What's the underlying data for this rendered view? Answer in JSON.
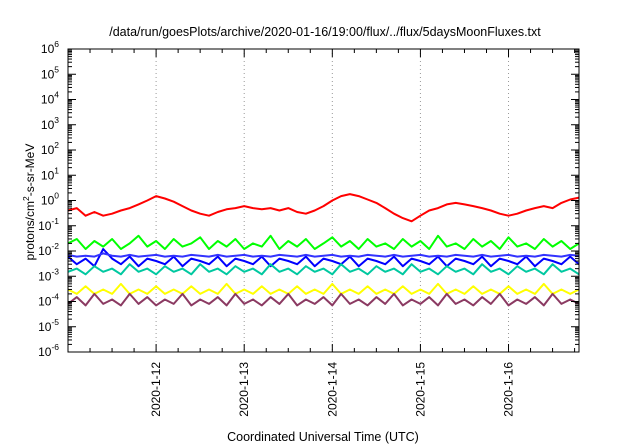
{
  "chart_data": {
    "type": "line",
    "title": "/data/run/goesPlots/archive/2020-01-16/19:00/flux/../flux/5daysMoonFluxes.txt",
    "xlabel": "Coordinated Universal Time (UTC)",
    "ylabel": {
      "base": "protons/cm",
      "sup": "2",
      "rest": "-s-sr-MeV"
    },
    "x_ticks": [
      "2020-1-12",
      "2020-1-13",
      "2020-1-14",
      "2020-1-15",
      "2020-1-16"
    ],
    "xlim_days": [
      0.0,
      5.8
    ],
    "ylim": [
      1e-06,
      1000000.0
    ],
    "y_scale": "log",
    "y_ticks": [
      {
        "base": "10",
        "exp": "-6"
      },
      {
        "base": "10",
        "exp": "-5"
      },
      {
        "base": "10",
        "exp": "-4"
      },
      {
        "base": "10",
        "exp": "-3"
      },
      {
        "base": "10",
        "exp": "-2"
      },
      {
        "base": "10",
        "exp": "-1"
      },
      {
        "base": "10",
        "exp": "0"
      },
      {
        "base": "10",
        "exp": "1"
      },
      {
        "base": "10",
        "exp": "2"
      },
      {
        "base": "10",
        "exp": "3"
      },
      {
        "base": "10",
        "exp": "4"
      },
      {
        "base": "10",
        "exp": "5"
      },
      {
        "base": "10",
        "exp": "6"
      }
    ],
    "grid": "dotted",
    "legend": "none",
    "series": [
      {
        "color": "#ff0000",
        "x": [
          0.0,
          0.1,
          0.2,
          0.3,
          0.4,
          0.5,
          0.6,
          0.7,
          0.8,
          0.9,
          1.0,
          1.1,
          1.2,
          1.3,
          1.4,
          1.5,
          1.6,
          1.7,
          1.8,
          1.9,
          2.0,
          2.1,
          2.2,
          2.3,
          2.4,
          2.5,
          2.6,
          2.7,
          2.8,
          2.9,
          3.0,
          3.1,
          3.2,
          3.3,
          3.4,
          3.5,
          3.6,
          3.7,
          3.8,
          3.9,
          4.0,
          4.1,
          4.2,
          4.3,
          4.4,
          4.5,
          4.6,
          4.7,
          4.8,
          4.9,
          5.0,
          5.1,
          5.2,
          5.3,
          5.4,
          5.5,
          5.6,
          5.7,
          5.8
        ],
        "values": [
          0.4,
          0.5,
          0.25,
          0.35,
          0.25,
          0.3,
          0.4,
          0.5,
          0.7,
          1.0,
          1.5,
          1.2,
          0.9,
          0.6,
          0.4,
          0.3,
          0.25,
          0.35,
          0.45,
          0.5,
          0.6,
          0.5,
          0.45,
          0.5,
          0.4,
          0.5,
          0.35,
          0.3,
          0.4,
          0.6,
          1.0,
          1.5,
          1.8,
          1.5,
          1.1,
          0.8,
          0.5,
          0.3,
          0.2,
          0.15,
          0.25,
          0.4,
          0.5,
          0.7,
          0.8,
          0.7,
          0.6,
          0.5,
          0.4,
          0.3,
          0.25,
          0.3,
          0.4,
          0.5,
          0.6,
          0.5,
          0.8,
          1.1,
          1.3
        ]
      },
      {
        "color": "#00ff00",
        "x": [
          0.0,
          0.1,
          0.2,
          0.3,
          0.4,
          0.5,
          0.6,
          0.7,
          0.8,
          0.9,
          1.0,
          1.1,
          1.2,
          1.3,
          1.4,
          1.5,
          1.6,
          1.7,
          1.8,
          1.9,
          2.0,
          2.1,
          2.2,
          2.3,
          2.4,
          2.5,
          2.6,
          2.7,
          2.8,
          2.9,
          3.0,
          3.1,
          3.2,
          3.3,
          3.4,
          3.5,
          3.6,
          3.7,
          3.8,
          3.9,
          4.0,
          4.1,
          4.2,
          4.3,
          4.4,
          4.5,
          4.6,
          4.7,
          4.8,
          4.9,
          5.0,
          5.1,
          5.2,
          5.3,
          5.4,
          5.5,
          5.6,
          5.7,
          5.8
        ],
        "values": [
          0.02,
          0.03,
          0.012,
          0.025,
          0.015,
          0.03,
          0.012,
          0.02,
          0.04,
          0.015,
          0.025,
          0.012,
          0.03,
          0.015,
          0.02,
          0.035,
          0.012,
          0.025,
          0.015,
          0.03,
          0.012,
          0.02,
          0.015,
          0.04,
          0.012,
          0.025,
          0.015,
          0.03,
          0.012,
          0.02,
          0.035,
          0.015,
          0.025,
          0.012,
          0.03,
          0.015,
          0.02,
          0.012,
          0.03,
          0.015,
          0.025,
          0.012,
          0.04,
          0.015,
          0.02,
          0.012,
          0.03,
          0.015,
          0.025,
          0.012,
          0.035,
          0.015,
          0.02,
          0.012,
          0.03,
          0.015,
          0.025,
          0.012,
          0.02
        ]
      },
      {
        "color": "#0000ff",
        "x": [
          0.0,
          0.1,
          0.2,
          0.3,
          0.4,
          0.5,
          0.6,
          0.7,
          0.8,
          0.9,
          1.0,
          1.1,
          1.2,
          1.3,
          1.4,
          1.5,
          1.6,
          1.7,
          1.8,
          1.9,
          2.0,
          2.1,
          2.2,
          2.3,
          2.4,
          2.5,
          2.6,
          2.7,
          2.8,
          2.9,
          3.0,
          3.1,
          3.2,
          3.3,
          3.4,
          3.5,
          3.6,
          3.7,
          3.8,
          3.9,
          4.0,
          4.1,
          4.2,
          4.3,
          4.4,
          4.5,
          4.6,
          4.7,
          4.8,
          4.9,
          5.0,
          5.1,
          5.2,
          5.3,
          5.4,
          5.5,
          5.6,
          5.7,
          5.8
        ],
        "values": [
          0.006,
          0.003,
          0.005,
          0.0025,
          0.012,
          0.005,
          0.003,
          0.006,
          0.0025,
          0.005,
          0.004,
          0.003,
          0.006,
          0.0025,
          0.005,
          0.004,
          0.003,
          0.006,
          0.0025,
          0.005,
          0.004,
          0.003,
          0.006,
          0.0025,
          0.005,
          0.004,
          0.003,
          0.006,
          0.0025,
          0.005,
          0.004,
          0.003,
          0.006,
          0.0025,
          0.005,
          0.004,
          0.003,
          0.006,
          0.0025,
          0.005,
          0.004,
          0.003,
          0.006,
          0.0025,
          0.005,
          0.004,
          0.003,
          0.006,
          0.0025,
          0.005,
          0.004,
          0.003,
          0.006,
          0.0025,
          0.005,
          0.004,
          0.003,
          0.006,
          0.003
        ]
      },
      {
        "color": "#3333ff",
        "x": [
          0.0,
          0.1,
          0.2,
          0.3,
          0.4,
          0.5,
          0.6,
          0.7,
          0.8,
          0.9,
          1.0,
          1.1,
          1.2,
          1.3,
          1.4,
          1.5,
          1.6,
          1.7,
          1.8,
          1.9,
          2.0,
          2.1,
          2.2,
          2.3,
          2.4,
          2.5,
          2.6,
          2.7,
          2.8,
          2.9,
          3.0,
          3.1,
          3.2,
          3.3,
          3.4,
          3.5,
          3.6,
          3.7,
          3.8,
          3.9,
          4.0,
          4.1,
          4.2,
          4.3,
          4.4,
          4.5,
          4.6,
          4.7,
          4.8,
          4.9,
          5.0,
          5.1,
          5.2,
          5.3,
          5.4,
          5.5,
          5.6,
          5.7,
          5.8
        ],
        "values": [
          0.007,
          0.006,
          0.0065,
          0.006,
          0.008,
          0.0065,
          0.006,
          0.007,
          0.006,
          0.0065,
          0.007,
          0.006,
          0.0065,
          0.006,
          0.007,
          0.0065,
          0.006,
          0.007,
          0.006,
          0.0065,
          0.007,
          0.006,
          0.0065,
          0.006,
          0.007,
          0.0065,
          0.006,
          0.007,
          0.006,
          0.0065,
          0.007,
          0.006,
          0.0065,
          0.006,
          0.007,
          0.0065,
          0.006,
          0.007,
          0.006,
          0.0065,
          0.007,
          0.006,
          0.0065,
          0.006,
          0.007,
          0.0065,
          0.006,
          0.007,
          0.006,
          0.0065,
          0.007,
          0.006,
          0.0065,
          0.006,
          0.007,
          0.0065,
          0.006,
          0.007,
          0.0065
        ]
      },
      {
        "color": "#00c8a0",
        "x": [
          0.0,
          0.1,
          0.2,
          0.3,
          0.4,
          0.5,
          0.6,
          0.7,
          0.8,
          0.9,
          1.0,
          1.1,
          1.2,
          1.3,
          1.4,
          1.5,
          1.6,
          1.7,
          1.8,
          1.9,
          2.0,
          2.1,
          2.2,
          2.3,
          2.4,
          2.5,
          2.6,
          2.7,
          2.8,
          2.9,
          3.0,
          3.1,
          3.2,
          3.3,
          3.4,
          3.5,
          3.6,
          3.7,
          3.8,
          3.9,
          4.0,
          4.1,
          4.2,
          4.3,
          4.4,
          4.5,
          4.6,
          4.7,
          4.8,
          4.9,
          5.0,
          5.1,
          5.2,
          5.3,
          5.4,
          5.5,
          5.6,
          5.7,
          5.8
        ],
        "values": [
          0.0015,
          0.002,
          0.0012,
          0.0025,
          0.0015,
          0.002,
          0.0012,
          0.003,
          0.0015,
          0.002,
          0.0012,
          0.0025,
          0.0015,
          0.002,
          0.0012,
          0.003,
          0.0015,
          0.002,
          0.0012,
          0.0025,
          0.0015,
          0.002,
          0.0012,
          0.003,
          0.0015,
          0.002,
          0.0012,
          0.0025,
          0.0015,
          0.002,
          0.0012,
          0.003,
          0.0015,
          0.002,
          0.0012,
          0.0025,
          0.0015,
          0.002,
          0.0012,
          0.003,
          0.0015,
          0.002,
          0.0012,
          0.0025,
          0.0015,
          0.002,
          0.0012,
          0.003,
          0.0015,
          0.002,
          0.0012,
          0.0025,
          0.0015,
          0.002,
          0.0012,
          0.003,
          0.0015,
          0.002,
          0.0012
        ]
      },
      {
        "color": "#ffff00",
        "x": [
          0.0,
          0.1,
          0.2,
          0.3,
          0.4,
          0.5,
          0.6,
          0.7,
          0.8,
          0.9,
          1.0,
          1.1,
          1.2,
          1.3,
          1.4,
          1.5,
          1.6,
          1.7,
          1.8,
          1.9,
          2.0,
          2.1,
          2.2,
          2.3,
          2.4,
          2.5,
          2.6,
          2.7,
          2.8,
          2.9,
          3.0,
          3.1,
          3.2,
          3.3,
          3.4,
          3.5,
          3.6,
          3.7,
          3.8,
          3.9,
          4.0,
          4.1,
          4.2,
          4.3,
          4.4,
          4.5,
          4.6,
          4.7,
          4.8,
          4.9,
          5.0,
          5.1,
          5.2,
          5.3,
          5.4,
          5.5,
          5.6,
          5.7,
          5.8
        ],
        "values": [
          0.0003,
          0.0002,
          0.0004,
          0.0002,
          0.0003,
          0.0002,
          0.0005,
          0.0002,
          0.0003,
          0.0002,
          0.0004,
          0.0002,
          0.0003,
          0.0002,
          0.0004,
          0.0002,
          0.0003,
          0.0002,
          0.0005,
          0.0002,
          0.0003,
          0.0002,
          0.0004,
          0.0002,
          0.0003,
          0.0002,
          0.0004,
          0.0002,
          0.0003,
          0.0002,
          0.0005,
          0.0002,
          0.0003,
          0.0002,
          0.0004,
          0.0002,
          0.0003,
          0.0002,
          0.0004,
          0.0002,
          0.0003,
          0.0002,
          0.0005,
          0.0002,
          0.0003,
          0.0002,
          0.0004,
          0.0002,
          0.0003,
          0.0002,
          0.0004,
          0.0002,
          0.0003,
          0.0002,
          0.0005,
          0.0002,
          0.0003,
          0.0002,
          0.0003
        ]
      },
      {
        "color": "#8b3a62",
        "x": [
          0.0,
          0.1,
          0.2,
          0.3,
          0.4,
          0.5,
          0.6,
          0.7,
          0.8,
          0.9,
          1.0,
          1.1,
          1.2,
          1.3,
          1.4,
          1.5,
          1.6,
          1.7,
          1.8,
          1.9,
          2.0,
          2.1,
          2.2,
          2.3,
          2.4,
          2.5,
          2.6,
          2.7,
          2.8,
          2.9,
          3.0,
          3.1,
          3.2,
          3.3,
          3.4,
          3.5,
          3.6,
          3.7,
          3.8,
          3.9,
          4.0,
          4.1,
          4.2,
          4.3,
          4.4,
          4.5,
          4.6,
          4.7,
          4.8,
          4.9,
          5.0,
          5.1,
          5.2,
          5.3,
          5.4,
          5.5,
          5.6,
          5.7,
          5.8
        ],
        "values": [
          8e-05,
          0.00015,
          7e-05,
          0.0002,
          8e-05,
          0.00012,
          7e-05,
          0.0002,
          8e-05,
          0.00015,
          7e-05,
          0.00012,
          8e-05,
          0.0002,
          7e-05,
          0.00012,
          8e-05,
          0.00015,
          7e-05,
          0.0002,
          8e-05,
          0.00012,
          7e-05,
          0.00015,
          8e-05,
          0.0002,
          7e-05,
          0.00012,
          8e-05,
          0.00015,
          7e-05,
          0.0002,
          8e-05,
          0.00012,
          7e-05,
          0.00015,
          8e-05,
          0.0002,
          7e-05,
          0.00012,
          8e-05,
          0.00015,
          7e-05,
          0.0002,
          8e-05,
          0.00012,
          7e-05,
          0.00015,
          8e-05,
          0.0002,
          7e-05,
          0.00012,
          8e-05,
          0.00015,
          7e-05,
          0.0002,
          8e-05,
          0.00012,
          8e-05
        ]
      }
    ]
  }
}
